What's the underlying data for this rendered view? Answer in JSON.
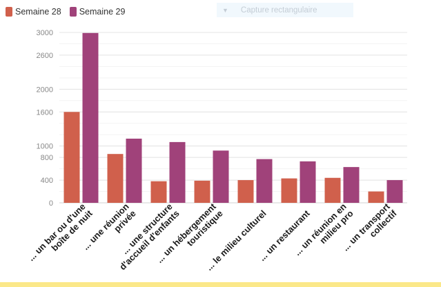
{
  "overlay": {
    "label": "Capture rectangulaire",
    "icon": "dropdown-arrow-icon"
  },
  "colors": {
    "semaine28": "#d0604c",
    "semaine29": "#a0427a"
  },
  "chart_data": {
    "type": "bar",
    "title": "",
    "xlabel": "",
    "ylabel": "",
    "ylim": [
      0,
      3000
    ],
    "yticks": [
      0,
      400,
      800,
      1000,
      1600,
      2000,
      2600,
      3000
    ],
    "grid": true,
    "legend_position": "top-left",
    "categories": [
      [
        "... un bar ou d'une",
        "boîte de nuit"
      ],
      [
        "... une réunion",
        "privée"
      ],
      [
        "... une structure",
        "d'accueil d'enfants"
      ],
      [
        "... un hébergement",
        "touristique"
      ],
      [
        "... le milieu culturel"
      ],
      [
        "... un restaurant"
      ],
      [
        "... un réunion en",
        "milieu pro"
      ],
      [
        "... un transport",
        "collectif"
      ]
    ],
    "series": [
      {
        "name": "Semaine 28",
        "color": "#d0604c",
        "values": [
          1600,
          860,
          380,
          390,
          400,
          430,
          440,
          200
        ]
      },
      {
        "name": "Semaine 29",
        "color": "#a0427a",
        "values": [
          2990,
          1130,
          1070,
          920,
          770,
          730,
          630,
          400
        ]
      }
    ]
  }
}
